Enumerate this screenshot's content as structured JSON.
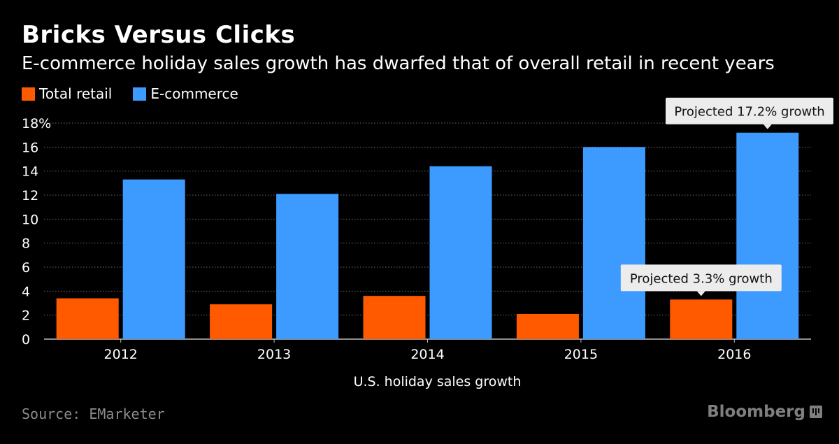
{
  "header": {
    "title": "Bricks Versus Clicks",
    "subtitle": "E-commerce holiday sales growth has dwarfed that of overall retail in recent years"
  },
  "legend": {
    "items": [
      {
        "label": "Total retail",
        "color": "#ff5a00"
      },
      {
        "label": "E-commerce",
        "color": "#3d9bff"
      }
    ]
  },
  "footer": {
    "source": "Source: EMarketer",
    "brand": "Bloomberg"
  },
  "chart_data": {
    "type": "bar",
    "title": "Bricks Versus Clicks",
    "xlabel": "U.S. holiday sales growth",
    "ylabel": "",
    "categories": [
      "2012",
      "2013",
      "2014",
      "2015",
      "2016"
    ],
    "series": [
      {
        "name": "Total retail",
        "color": "#ff5a00",
        "values": [
          3.4,
          2.9,
          3.6,
          2.1,
          3.3
        ]
      },
      {
        "name": "E-commerce",
        "color": "#3d9bff",
        "values": [
          13.3,
          12.1,
          14.4,
          16.0,
          17.2
        ]
      }
    ],
    "ylim": [
      0,
      18
    ],
    "yticks": [
      0,
      2,
      4,
      6,
      8,
      10,
      12,
      14,
      16,
      18
    ],
    "ytick_labels": [
      "0",
      "2",
      "4",
      "6",
      "8",
      "10",
      "12",
      "14",
      "16",
      "18%"
    ],
    "grid": true,
    "annotations": [
      {
        "text": "Projected 17.2% growth",
        "category": "2016",
        "series": "E-commerce"
      },
      {
        "text": "Projected 3.3% growth",
        "category": "2016",
        "series": "Total retail"
      }
    ]
  }
}
